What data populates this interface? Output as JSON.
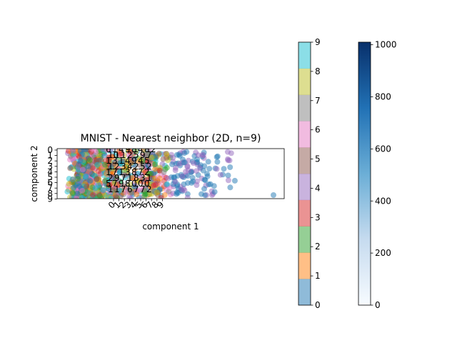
{
  "chart_data": {
    "type": "scatter",
    "title": "MNIST - Nearest neighbor (2D, n=9)",
    "xlabel": "component 1",
    "ylabel": "component 2",
    "xticks": [
      "0",
      "1",
      "2",
      "3",
      "4",
      "5",
      "6",
      "7",
      "8",
      "9"
    ],
    "yticks": [
      "0",
      "1",
      "2",
      "3",
      "4",
      "5",
      "6",
      "7",
      "8",
      "9"
    ],
    "legend": "none",
    "grid": false,
    "class_colorbar": {
      "range": [
        0,
        9
      ],
      "ticks": [
        "0",
        "1",
        "2",
        "3",
        "4",
        "5",
        "6",
        "7",
        "8",
        "9"
      ],
      "colors": [
        "#1f77b4",
        "#ff7f0e",
        "#2ca02c",
        "#d62728",
        "#9467bd",
        "#8c564b",
        "#e377c2",
        "#7f7f7f",
        "#bcbd22",
        "#17becf"
      ],
      "alpha": 0.5
    },
    "heat_colorbar": {
      "range": [
        0,
        1010
      ],
      "ticks": [
        "0",
        "200",
        "400",
        "600",
        "800",
        "1000"
      ],
      "cmap": "Blues"
    },
    "heatmap_annotations": [
      "6",
      "1",
      "4",
      "9",
      "8",
      "4",
      "8",
      "2",
      "10",
      "1",
      "1",
      "2",
      "5",
      "9",
      "7",
      "1",
      "3",
      "1",
      "4",
      "9",
      "4",
      "5",
      "1",
      "2",
      "3",
      "4",
      "2",
      "5",
      "2",
      "1",
      "7",
      "1",
      "3",
      "8",
      "7",
      "2",
      "2",
      "9",
      "7",
      "1",
      "8",
      "3",
      "1",
      "5",
      "7",
      "9",
      "8",
      "0",
      "0",
      "0",
      "1",
      "1",
      "7",
      "6",
      "7",
      "7",
      "2",
      "3",
      "8"
    ]
  }
}
